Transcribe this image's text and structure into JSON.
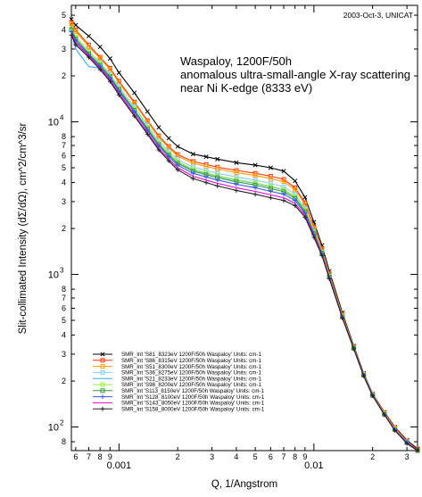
{
  "chart_data": {
    "type": "line",
    "xlabel": "Q, 1/Angstrom",
    "ylabel": "Slit-collimated Intensity (dΣ/dΩ), cm^2/cm^3/sr",
    "xscale": "log",
    "yscale": "log",
    "xlim": [
      0.00057,
      0.034
    ],
    "ylim": [
      70,
      58000
    ],
    "grid": false,
    "legend_position": "bottom-left",
    "corner_note": "2003-Oct-3, UNICAT",
    "annotation_lines": [
      "Waspaloy, 1200F/50h",
      "anomalous ultra-small-angle X-ray scattering",
      "near Ni K-edge (8333 eV)"
    ],
    "x_major_ticks": [
      {
        "value": 0.001,
        "label": "0.001"
      },
      {
        "value": 0.01,
        "label": "0.01"
      }
    ],
    "x_minor_ticks": [
      {
        "value": 0.0006,
        "label": "6"
      },
      {
        "value": 0.0007,
        "label": "7"
      },
      {
        "value": 0.0008,
        "label": "8"
      },
      {
        "value": 0.0009,
        "label": "9"
      },
      {
        "value": 0.002,
        "label": "2"
      },
      {
        "value": 0.003,
        "label": "3"
      },
      {
        "value": 0.004,
        "label": "4"
      },
      {
        "value": 0.005,
        "label": "5"
      },
      {
        "value": 0.006,
        "label": "6"
      },
      {
        "value": 0.007,
        "label": "7"
      },
      {
        "value": 0.008,
        "label": "8"
      },
      {
        "value": 0.009,
        "label": "9"
      },
      {
        "value": 0.02,
        "label": "2"
      },
      {
        "value": 0.03,
        "label": "3"
      }
    ],
    "y_major_ticks": [
      {
        "value": 100,
        "base": "10",
        "exp": "2"
      },
      {
        "value": 1000,
        "base": "10",
        "exp": "3"
      },
      {
        "value": 10000,
        "base": "10",
        "exp": "4"
      }
    ],
    "y_minor_ticks": [
      {
        "value": 80,
        "label": "8"
      },
      {
        "value": 200,
        "label": "2"
      },
      {
        "value": 300,
        "label": "3"
      },
      {
        "value": 400,
        "label": "4"
      },
      {
        "value": 500,
        "label": "5"
      },
      {
        "value": 600,
        "label": "6"
      },
      {
        "value": 700,
        "label": "7"
      },
      {
        "value": 800,
        "label": "8"
      },
      {
        "value": 2000,
        "label": "2"
      },
      {
        "value": 3000,
        "label": "3"
      },
      {
        "value": 4000,
        "label": "4"
      },
      {
        "value": 5000,
        "label": "5"
      },
      {
        "value": 6000,
        "label": "6"
      },
      {
        "value": 7000,
        "label": "7"
      },
      {
        "value": 8000,
        "label": "8"
      },
      {
        "value": 20000,
        "label": "2"
      },
      {
        "value": 30000,
        "label": "3"
      },
      {
        "value": 40000,
        "label": "4"
      },
      {
        "value": 50000,
        "label": "5"
      }
    ],
    "series": [
      {
        "name": "SMR_Int 'S81_8323eV 1200F/50h Waspaloy' Units: cm-1",
        "color": "#000000",
        "marker": "x",
        "x": [
          0.00057,
          0.0006,
          0.0007,
          0.0008,
          0.0009,
          0.001,
          0.0012,
          0.0014,
          0.0016,
          0.0018,
          0.002,
          0.0024,
          0.0028,
          0.0032,
          0.004,
          0.005,
          0.006,
          0.007,
          0.008,
          0.009,
          0.01,
          0.011,
          0.012,
          0.014,
          0.016,
          0.018,
          0.02,
          0.023,
          0.026,
          0.03,
          0.034
        ],
        "y": [
          47000,
          43000,
          36500,
          31000,
          26000,
          21000,
          15500,
          11700,
          9200,
          7800,
          6900,
          6150,
          5900,
          5700,
          5400,
          5200,
          5000,
          4750,
          4100,
          3200,
          2200,
          1550,
          1050,
          560,
          340,
          225,
          165,
          125,
          100,
          82,
          72
        ]
      },
      {
        "name": "SMR_Int 'S86_8315eV 1200F/50h Waspaloy' Units: cm-1",
        "color": "#ff3300",
        "marker": "square",
        "x": [
          0.00057,
          0.0006,
          0.0007,
          0.0008,
          0.0009,
          0.001,
          0.0012,
          0.0014,
          0.0016,
          0.0018,
          0.002,
          0.0024,
          0.0028,
          0.0032,
          0.004,
          0.005,
          0.006,
          0.007,
          0.008,
          0.009,
          0.01,
          0.011,
          0.012,
          0.014,
          0.016,
          0.018,
          0.02,
          0.023,
          0.026,
          0.03,
          0.034
        ],
        "y": [
          45000,
          40000,
          32000,
          26500,
          22500,
          18500,
          13500,
          10200,
          8100,
          6900,
          6100,
          5500,
          5250,
          5050,
          4800,
          4600,
          4400,
          4200,
          3700,
          2950,
          2050,
          1480,
          1010,
          545,
          335,
          222,
          164,
          124,
          99,
          81,
          71
        ]
      },
      {
        "name": "SMR_Int 'S51_8300eV 1200F/50h Waspaloy' Units: cm-1",
        "color": "#ff9900",
        "marker": "square",
        "x": [
          0.00057,
          0.0006,
          0.0007,
          0.0008,
          0.0009,
          0.001,
          0.0012,
          0.0014,
          0.0016,
          0.0018,
          0.002,
          0.0024,
          0.0028,
          0.0032,
          0.004,
          0.005,
          0.006,
          0.007,
          0.008,
          0.009,
          0.01,
          0.011,
          0.012,
          0.014,
          0.016,
          0.018,
          0.02,
          0.023,
          0.026,
          0.03,
          0.034
        ],
        "y": [
          44000,
          39000,
          31000,
          26000,
          22000,
          18000,
          13200,
          10000,
          7900,
          6750,
          5950,
          5350,
          5100,
          4900,
          4650,
          4450,
          4250,
          4050,
          3580,
          2870,
          2000,
          1450,
          995,
          540,
          333,
          221,
          163,
          123,
          98,
          80,
          70
        ]
      },
      {
        "name": "SMR_Int 'S36_8275eV 1200F/50h Waspaloy' Units: cm-1",
        "color": "#80d0ff",
        "marker": "square",
        "x": [
          0.00057,
          0.0006,
          0.0007,
          0.0008,
          0.0009,
          0.001,
          0.0012,
          0.0014,
          0.0016,
          0.0018,
          0.002,
          0.0024,
          0.0028,
          0.0032,
          0.004,
          0.005,
          0.006,
          0.007,
          0.008,
          0.009,
          0.01,
          0.011,
          0.012,
          0.014,
          0.016,
          0.018,
          0.02,
          0.023,
          0.026,
          0.03,
          0.034
        ],
        "y": [
          40000,
          36000,
          29000,
          24500,
          20500,
          17000,
          12500,
          9500,
          7500,
          6400,
          5650,
          5050,
          4800,
          4600,
          4350,
          4150,
          3950,
          3750,
          3350,
          2700,
          1920,
          1410,
          975,
          532,
          330,
          220,
          162,
          122,
          97,
          80,
          70
        ]
      },
      {
        "name": "SMR_Int 'S21_8233eV 1200F/50h Waspaloy' Units: cm-1",
        "color": "#33aaff",
        "marker": "none",
        "x": [
          0.00057,
          0.0006,
          0.0007,
          0.0008,
          0.0009,
          0.001,
          0.0012,
          0.0014,
          0.0016,
          0.0018,
          0.002,
          0.0024,
          0.0028,
          0.0032,
          0.004,
          0.005,
          0.006,
          0.007,
          0.008,
          0.009,
          0.01,
          0.011,
          0.012,
          0.014,
          0.016,
          0.018,
          0.02,
          0.023,
          0.026,
          0.03,
          0.034
        ],
        "y": [
          38000,
          30000,
          23000,
          22500,
          19500,
          16200,
          12000,
          9100,
          7200,
          6150,
          5450,
          4850,
          4600,
          4400,
          4150,
          3950,
          3750,
          3580,
          3220,
          2620,
          1880,
          1390,
          965,
          528,
          329,
          219,
          162,
          122,
          97,
          79,
          70
        ]
      },
      {
        "name": "SMR_Int 'S98_8200eV 1200F/50h Waspaloy' Units: cm-1",
        "color": "#99ee33",
        "marker": "square",
        "x": [
          0.00057,
          0.0006,
          0.0007,
          0.0008,
          0.0009,
          0.001,
          0.0012,
          0.0014,
          0.0016,
          0.0018,
          0.002,
          0.0024,
          0.0028,
          0.0032,
          0.004,
          0.005,
          0.006,
          0.007,
          0.008,
          0.009,
          0.01,
          0.011,
          0.012,
          0.014,
          0.016,
          0.018,
          0.02,
          0.023,
          0.026,
          0.03,
          0.034
        ],
        "y": [
          41000,
          36000,
          29000,
          24000,
          20000,
          16500,
          12100,
          9200,
          7250,
          6200,
          5480,
          4880,
          4630,
          4430,
          4180,
          3980,
          3780,
          3600,
          3240,
          2640,
          1890,
          1395,
          968,
          529,
          329,
          219,
          162,
          122,
          97,
          79,
          70
        ]
      },
      {
        "name": "SMR_Int 'S113_8150eV 1200F/50h Waspaloy' Units: cm-1",
        "color": "#339933",
        "marker": "square",
        "x": [
          0.00057,
          0.0006,
          0.0007,
          0.0008,
          0.0009,
          0.001,
          0.0012,
          0.0014,
          0.0016,
          0.0018,
          0.002,
          0.0024,
          0.0028,
          0.0032,
          0.004,
          0.005,
          0.006,
          0.007,
          0.008,
          0.009,
          0.01,
          0.011,
          0.012,
          0.014,
          0.016,
          0.018,
          0.02,
          0.023,
          0.026,
          0.03,
          0.034
        ],
        "y": [
          40000,
          35000,
          28000,
          23500,
          19800,
          16300,
          11900,
          9000,
          7100,
          6050,
          5350,
          4750,
          4500,
          4300,
          4050,
          3850,
          3650,
          3480,
          3150,
          2580,
          1860,
          1380,
          960,
          526,
          328,
          218,
          161,
          121,
          96,
          79,
          70
        ]
      },
      {
        "name": "SMR_Int 'S128_8100eV 1200F/50h Waspaloy' Units: cm-1",
        "color": "#3355ff",
        "marker": "plus",
        "x": [
          0.00057,
          0.0006,
          0.0007,
          0.0008,
          0.0009,
          0.001,
          0.0012,
          0.0014,
          0.0016,
          0.0018,
          0.002,
          0.0024,
          0.0028,
          0.0032,
          0.004,
          0.005,
          0.006,
          0.007,
          0.008,
          0.009,
          0.01,
          0.011,
          0.012,
          0.014,
          0.016,
          0.018,
          0.02,
          0.023,
          0.026,
          0.03,
          0.034
        ],
        "y": [
          39000,
          34000,
          27500,
          23000,
          19300,
          15900,
          11600,
          8800,
          6950,
          5900,
          5200,
          4600,
          4350,
          4150,
          3900,
          3700,
          3500,
          3350,
          3050,
          2520,
          1830,
          1365,
          952,
          523,
          327,
          218,
          161,
          121,
          96,
          79,
          70
        ]
      },
      {
        "name": "SMR_Int 'S143_8050eV 1200F/50h Waspaloy' Units: cm-1",
        "color": "#ee00cc",
        "marker": "none",
        "x": [
          0.00057,
          0.0006,
          0.0007,
          0.0008,
          0.0009,
          0.001,
          0.0012,
          0.0014,
          0.0016,
          0.0018,
          0.002,
          0.0024,
          0.0028,
          0.0032,
          0.004,
          0.005,
          0.006,
          0.007,
          0.008,
          0.009,
          0.01,
          0.011,
          0.012,
          0.014,
          0.016,
          0.018,
          0.02,
          0.023,
          0.026,
          0.03,
          0.034
        ],
        "y": [
          38000,
          33000,
          27000,
          22500,
          18800,
          15400,
          11200,
          8500,
          6700,
          5700,
          5000,
          4400,
          4150,
          3950,
          3700,
          3500,
          3320,
          3180,
          2920,
          2440,
          1790,
          1345,
          943,
          520,
          326,
          217,
          160,
          121,
          96,
          78,
          70
        ]
      },
      {
        "name": "SMR_Int 'S158_8000eV 1200F/50h Waspaloy' Units: cm-1",
        "color": "#222222",
        "marker": "plus",
        "x": [
          0.00057,
          0.0006,
          0.0007,
          0.0008,
          0.0009,
          0.001,
          0.0012,
          0.0014,
          0.0016,
          0.0018,
          0.002,
          0.0024,
          0.0028,
          0.0032,
          0.004,
          0.005,
          0.006,
          0.007,
          0.008,
          0.009,
          0.01,
          0.011,
          0.012,
          0.014,
          0.016,
          0.018,
          0.02,
          0.023,
          0.026,
          0.03,
          0.034
        ],
        "y": [
          37000,
          32000,
          26500,
          22000,
          18400,
          15000,
          10900,
          8300,
          6550,
          5550,
          4850,
          4250,
          4000,
          3800,
          3550,
          3350,
          3180,
          3050,
          2820,
          2370,
          1750,
          1325,
          935,
          517,
          325,
          216,
          160,
          120,
          95,
          78,
          70
        ]
      }
    ]
  }
}
